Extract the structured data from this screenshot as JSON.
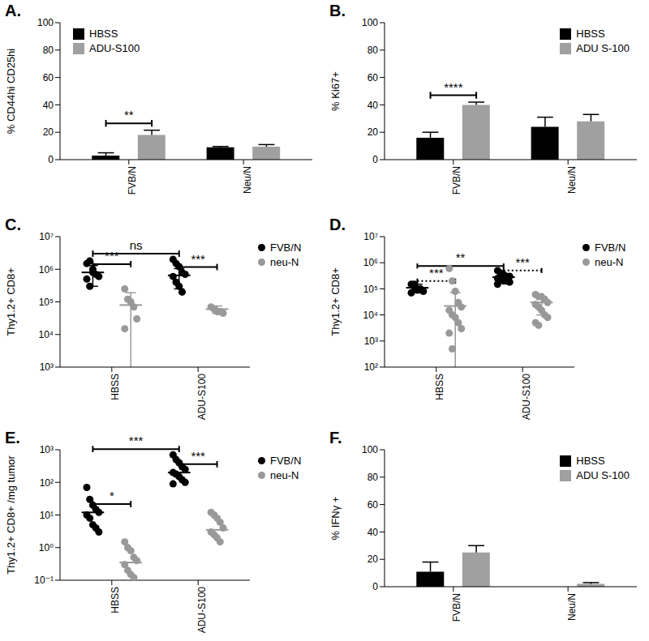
{
  "chart_data": [
    {
      "type": "bar",
      "title": "A.",
      "ylabel": "% CD44hi CD25hi",
      "categories": [
        "FVB/N",
        "Neu/N"
      ],
      "series": [
        {
          "name": "HBSS",
          "color": "#000000",
          "values": [
            3,
            9
          ],
          "errors": [
            2,
            0.6
          ]
        },
        {
          "name": "ADU-S100",
          "color": "#a0a0a0",
          "values": [
            18,
            9.5
          ],
          "errors": [
            3.5,
            1.5
          ]
        }
      ],
      "ylim": [
        0,
        100
      ],
      "yticks": [
        0,
        20,
        40,
        60,
        80,
        100
      ],
      "legend": "upper left",
      "annotations": [
        {
          "text": "**",
          "category": "FVB/N"
        }
      ]
    },
    {
      "type": "bar",
      "title": "B.",
      "ylabel": "% Ki67+",
      "categories": [
        "FVB/N",
        "Neu/N"
      ],
      "series": [
        {
          "name": "HBSS",
          "color": "#000000",
          "values": [
            16,
            24
          ],
          "errors": [
            4,
            7
          ]
        },
        {
          "name": "ADU S-100",
          "color": "#a0a0a0",
          "values": [
            40,
            28
          ],
          "errors": [
            2,
            5
          ]
        }
      ],
      "ylim": [
        0,
        100
      ],
      "yticks": [
        0,
        20,
        40,
        60,
        80,
        100
      ],
      "legend": "upper right",
      "annotations": [
        {
          "text": "****",
          "category": "FVB/N"
        }
      ]
    },
    {
      "type": "scatter",
      "title": "C.",
      "ylabel": "Thy1.2+ CD8+",
      "categories": [
        "HBSS",
        "ADU-S100"
      ],
      "log": "y",
      "marker": "circle",
      "legend": "right",
      "ylim": [
        1000,
        10000000
      ],
      "yticks": [
        {
          "value": 1000,
          "label": "10³"
        },
        {
          "value": 10000,
          "label": "10⁴"
        },
        {
          "value": 100000,
          "label": "10⁵"
        },
        {
          "value": 1000000,
          "label": "10⁶"
        },
        {
          "value": 10000000,
          "label": "10⁷"
        }
      ],
      "series": [
        {
          "name": "FVB/N",
          "color": "#000000",
          "values": [
            [
              1500000,
              1800000,
              1000000,
              700000,
              600000,
              500000,
              300000,
              800000
            ],
            [
              2000000,
              1500000,
              1200000,
              800000,
              700000,
              600000,
              400000,
              300000,
              200000
            ]
          ],
          "mean": [
            800000,
            650000
          ],
          "errors": [
            500000,
            400000
          ]
        },
        {
          "name": "neu-N",
          "color": "#999999",
          "values": [
            [
              250000,
              120000,
              100000,
              70000,
              30000,
              15000
            ],
            [
              70000,
              60000,
              50000,
              50000,
              45000
            ]
          ],
          "mean": [
            80000,
            60000
          ],
          "errors": [
            110000,
            15000
          ]
        }
      ],
      "annotations": [
        {
          "text": "ns",
          "series": "FVB/N"
        },
        {
          "text": "***",
          "category": "HBSS"
        },
        {
          "text": "***",
          "category": "ADU-S100"
        }
      ]
    },
    {
      "type": "scatter",
      "title": "D.",
      "ylabel": "Thy1.2+ CD8+",
      "categories": [
        "HBSS",
        "ADU-S100"
      ],
      "log": "y",
      "marker": "circle",
      "legend": "right",
      "ylim": [
        100,
        10000000
      ],
      "yticks": [
        {
          "value": 100,
          "label": "10²"
        },
        {
          "value": 1000,
          "label": "10³"
        },
        {
          "value": 10000,
          "label": "10⁴"
        },
        {
          "value": 100000,
          "label": "10⁵"
        },
        {
          "value": 1000000,
          "label": "10⁶"
        },
        {
          "value": 10000000,
          "label": "10⁷"
        }
      ],
      "series": [
        {
          "name": "FVB/N",
          "color": "#000000",
          "values": [
            [
              150000,
              120000,
              100000,
              100000,
              80000,
              70000,
              150000,
              90000
            ],
            [
              500000,
              400000,
              350000,
              300000,
              300000,
              250000,
              250000,
              200000,
              200000,
              180000,
              150000,
              300000
            ]
          ],
          "mean": [
            110000,
            280000
          ],
          "errors": [
            40000,
            100000
          ]
        },
        {
          "name": "neu-N",
          "color": "#999999",
          "values": [
            [
              600000,
              200000,
              80000,
              30000,
              20000,
              15000,
              10000,
              8000,
              5000,
              3000,
              2000,
              500
            ],
            [
              60000,
              50000,
              50000,
              40000,
              30000,
              25000,
              20000,
              15000,
              10000,
              8000,
              5000,
              4000
            ]
          ],
          "mean": [
            22000,
            30000
          ],
          "errors": [
            50000,
            20000
          ]
        }
      ],
      "annotations": [
        {
          "text": "**",
          "series": "FVB/N"
        },
        {
          "text": "***",
          "category": "HBSS",
          "line_style": "dotted"
        },
        {
          "text": "***",
          "category": "ADU-S100",
          "line_style": "dotted"
        }
      ]
    },
    {
      "type": "scatter",
      "title": "E.",
      "ylabel": "Thy1.2+ CD8+ /mg tumor",
      "categories": [
        "HBSS",
        "ADU-S100"
      ],
      "log": "y",
      "marker": "circle",
      "legend": "right",
      "ylim": [
        0.1,
        1000
      ],
      "yticks": [
        {
          "value": 0.1,
          "label": "10⁻¹"
        },
        {
          "value": 1,
          "label": "10⁰"
        },
        {
          "value": 10,
          "label": "10¹"
        },
        {
          "value": 100,
          "label": "10²"
        },
        {
          "value": 1000,
          "label": "10³"
        }
      ],
      "series": [
        {
          "name": "FVB/N",
          "color": "#000000",
          "values": [
            [
              70,
              30,
              20,
              15,
              12,
              10,
              8,
              5,
              4,
              3
            ],
            [
              700,
              500,
              400,
              300,
              250,
              200,
              180,
              150,
              120,
              100,
              90
            ]
          ],
          "mean": [
            12,
            200
          ]
        },
        {
          "name": "neu-N",
          "color": "#999999",
          "values": [
            [
              1.5,
              1,
              0.8,
              0.5,
              0.4,
              0.3,
              0.2,
              0.15,
              0.12
            ],
            [
              12,
              10,
              8,
              6,
              4,
              3,
              2.5,
              2,
              1.5
            ]
          ],
          "mean": [
            0.35,
            3.5
          ]
        }
      ],
      "annotations": [
        {
          "text": "***",
          "series": "FVB/N"
        },
        {
          "text": "*",
          "category": "HBSS"
        },
        {
          "text": "***",
          "category": "ADU-S100"
        }
      ]
    },
    {
      "type": "bar",
      "title": "F.",
      "ylabel": "% IFNγ +",
      "categories": [
        "FVB/N",
        "Neu/N"
      ],
      "series": [
        {
          "name": "HBSS",
          "color": "#000000",
          "values": [
            11,
            0
          ],
          "errors": [
            7,
            0
          ]
        },
        {
          "name": "ADU S-100",
          "color": "#a0a0a0",
          "values": [
            25,
            2
          ],
          "errors": [
            5,
            1
          ]
        }
      ],
      "ylim": [
        0,
        100
      ],
      "yticks": [
        0,
        20,
        40,
        60,
        80,
        100
      ],
      "legend": "upper right"
    }
  ]
}
